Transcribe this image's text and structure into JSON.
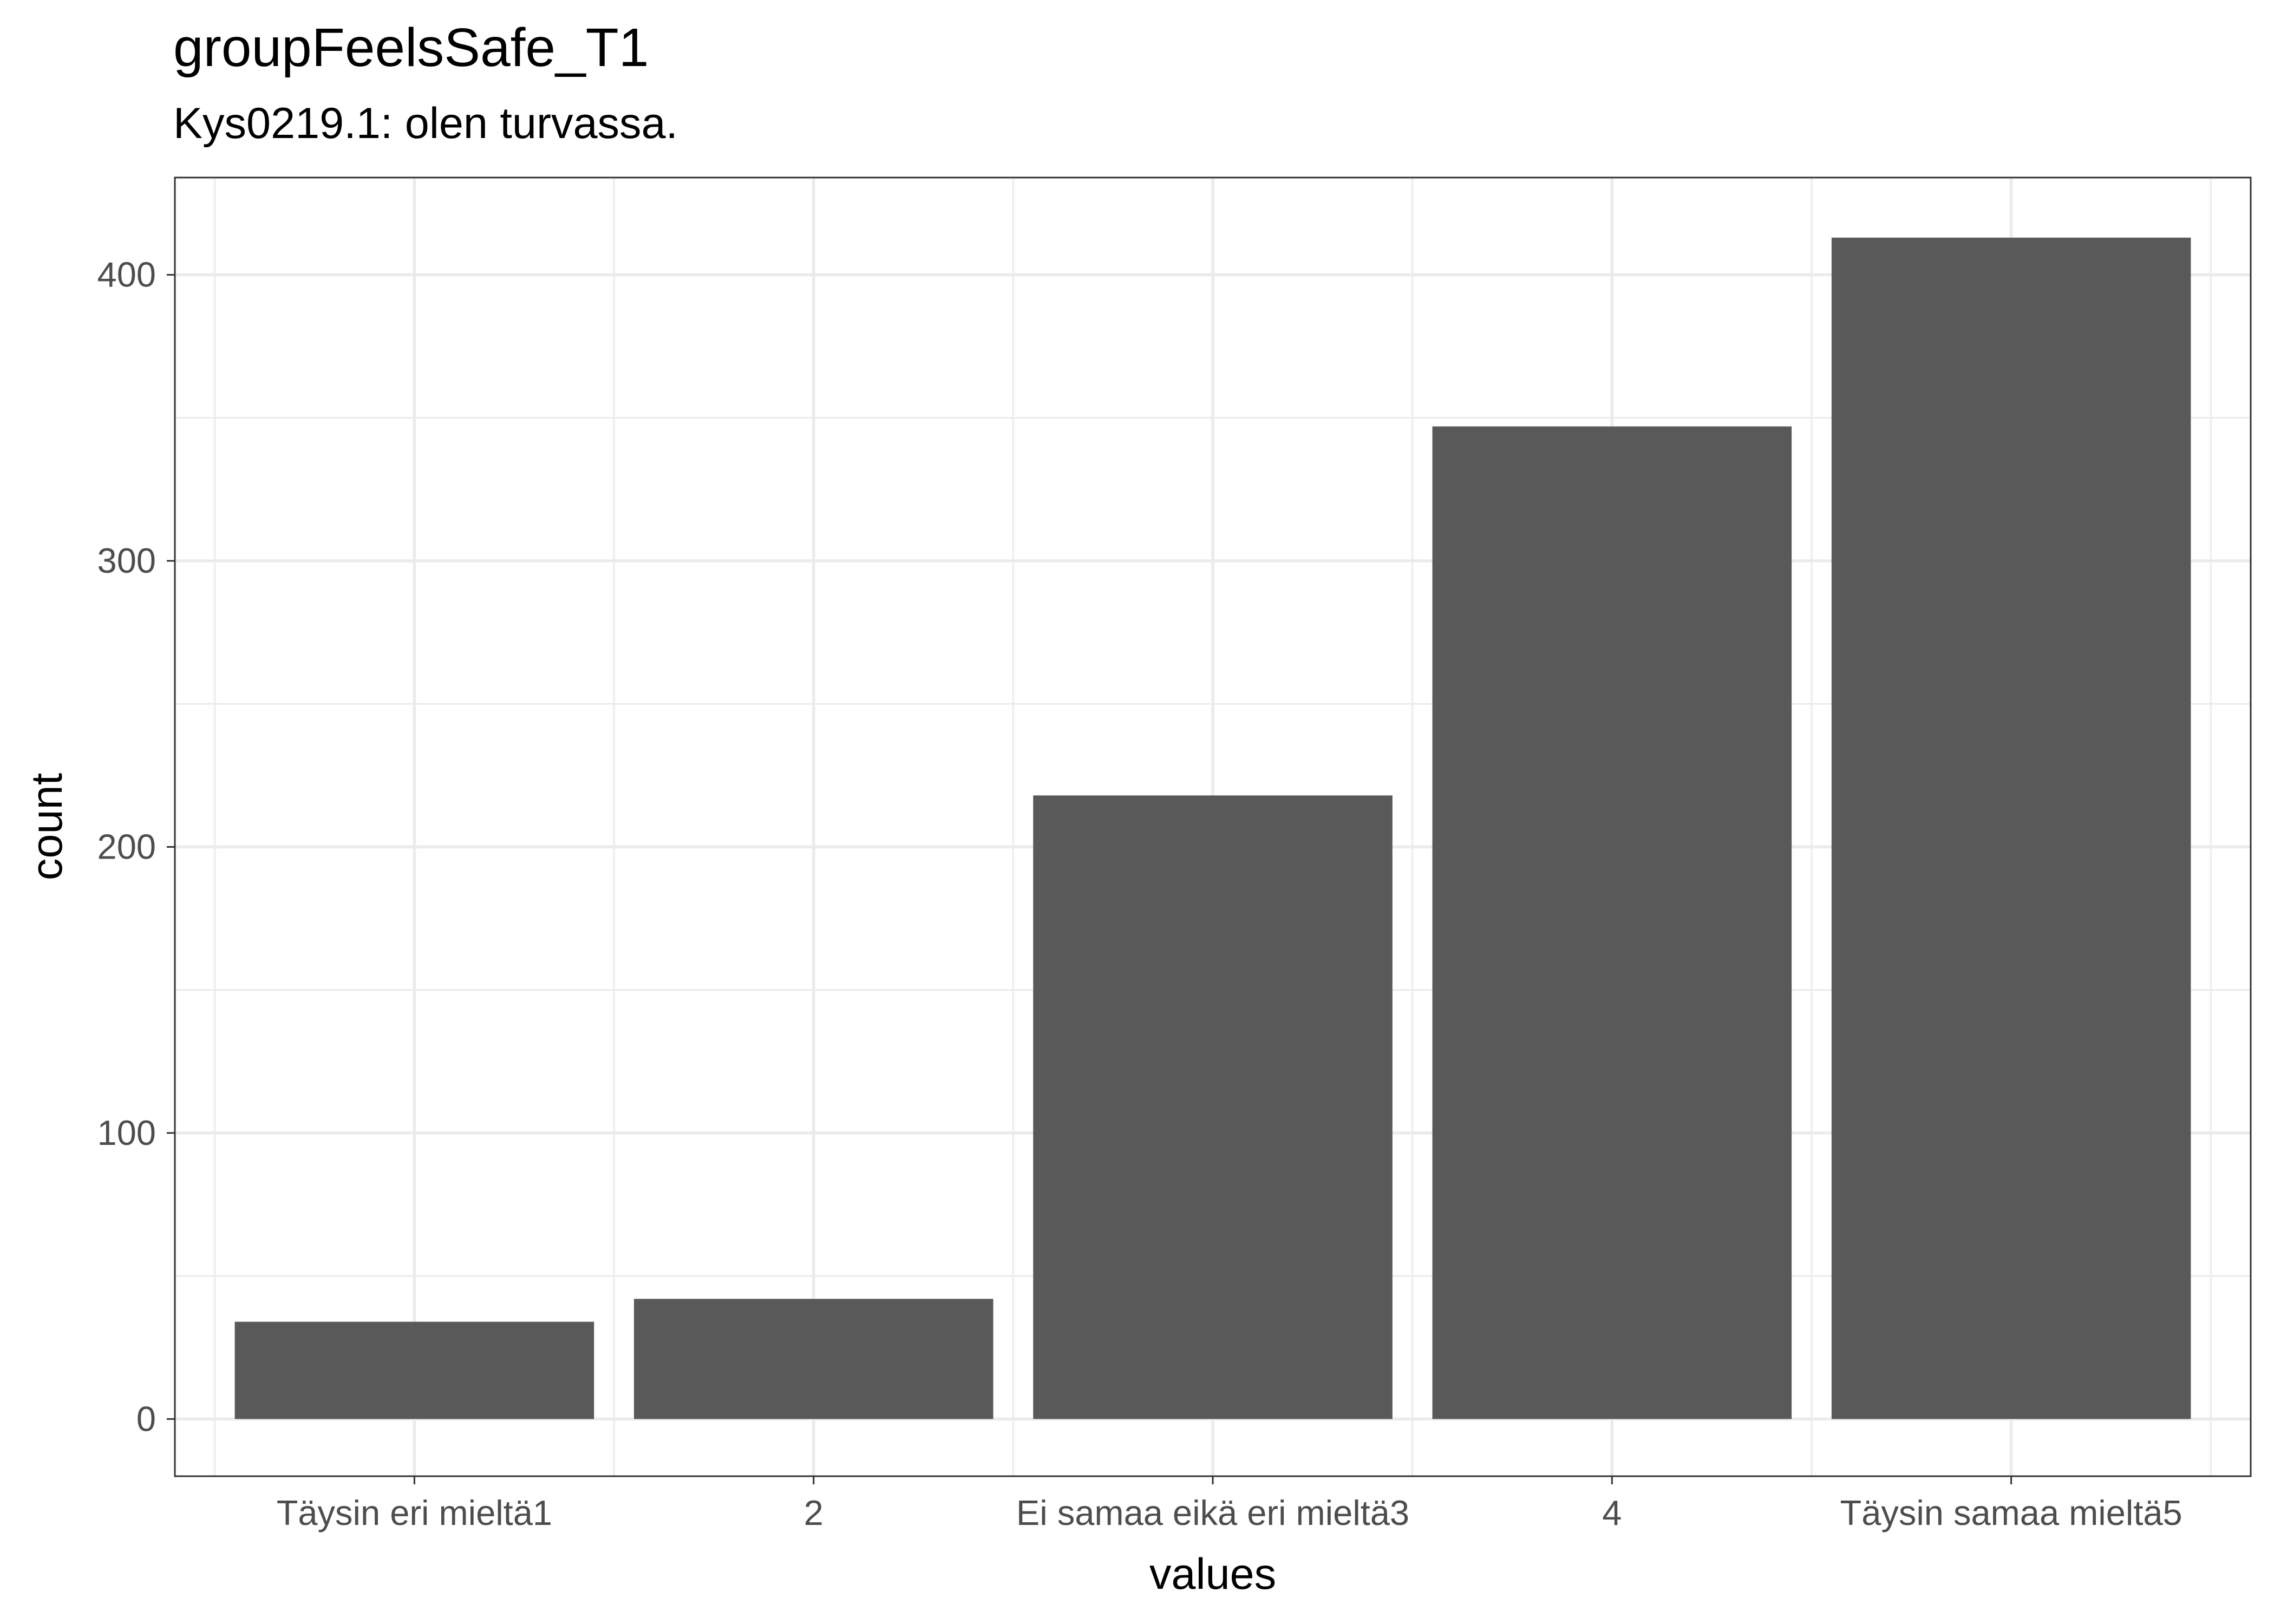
{
  "chart_data": {
    "type": "bar",
    "title": "groupFeelsSafe_T1",
    "subtitle": "Kys0219.1: olen turvassa.",
    "xlabel": "values",
    "ylabel": "count",
    "categories": [
      "Täysin eri mieltä1",
      "2",
      "Ei samaa eikä eri mieltä3",
      "4",
      "Täysin samaa mieltä5"
    ],
    "values": [
      34,
      42,
      218,
      347,
      413
    ],
    "ylim": [
      -20,
      434
    ],
    "y_ticks": [
      0,
      100,
      200,
      300,
      400
    ],
    "y_tick_labels": [
      "0",
      "100",
      "200",
      "300",
      "400"
    ],
    "grid": true,
    "colors": {
      "bar": "#595959",
      "grid": "#ebebeb",
      "panel_border": "#333333"
    }
  }
}
